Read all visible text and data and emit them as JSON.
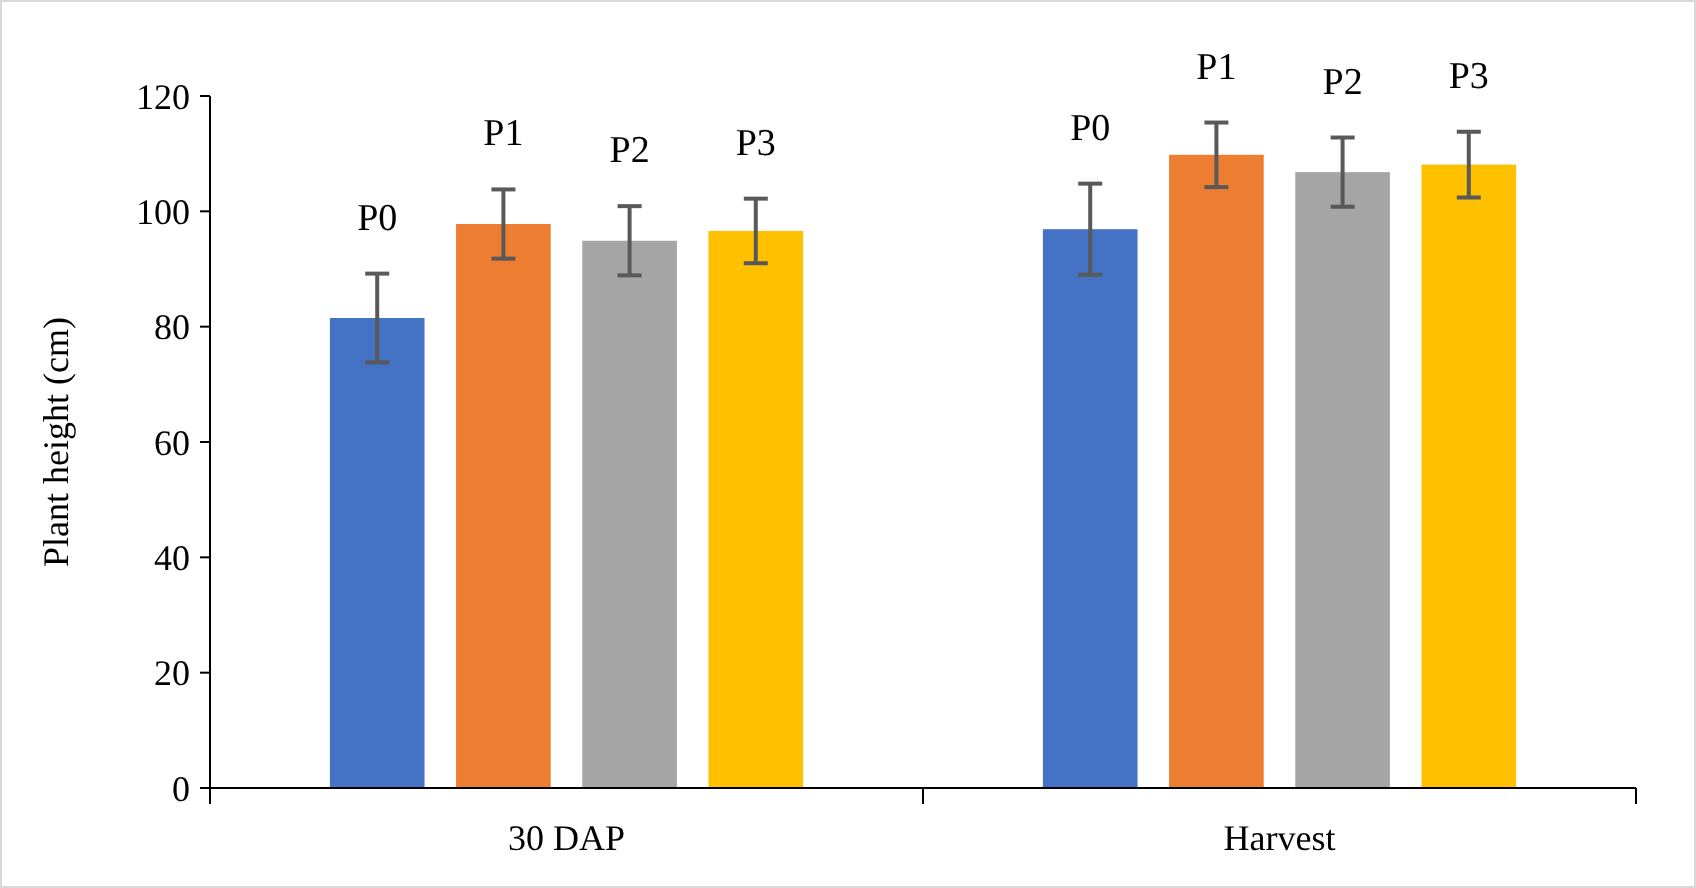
{
  "chart_data": {
    "type": "bar",
    "ylabel": "Plant height (cm)",
    "categories": [
      "30 DAP",
      "Harvest"
    ],
    "ylim": [
      0,
      120
    ],
    "yticks": [
      0,
      20,
      40,
      60,
      80,
      100,
      120
    ],
    "grid": false,
    "series": [
      {
        "name": "P0",
        "color": "#4472c4",
        "values": [
          81.5,
          96.9
        ],
        "errors": [
          7.7,
          7.9
        ]
      },
      {
        "name": "P1",
        "color": "#ed7d31",
        "values": [
          97.8,
          109.8
        ],
        "errors": [
          6,
          5.6
        ]
      },
      {
        "name": "P2",
        "color": "#a5a5a5",
        "values": [
          94.9,
          106.8
        ],
        "errors": [
          6,
          6
        ]
      },
      {
        "name": "P3",
        "color": "#ffc000",
        "values": [
          96.6,
          108.1
        ],
        "errors": [
          5.6,
          5.7
        ]
      }
    ]
  }
}
